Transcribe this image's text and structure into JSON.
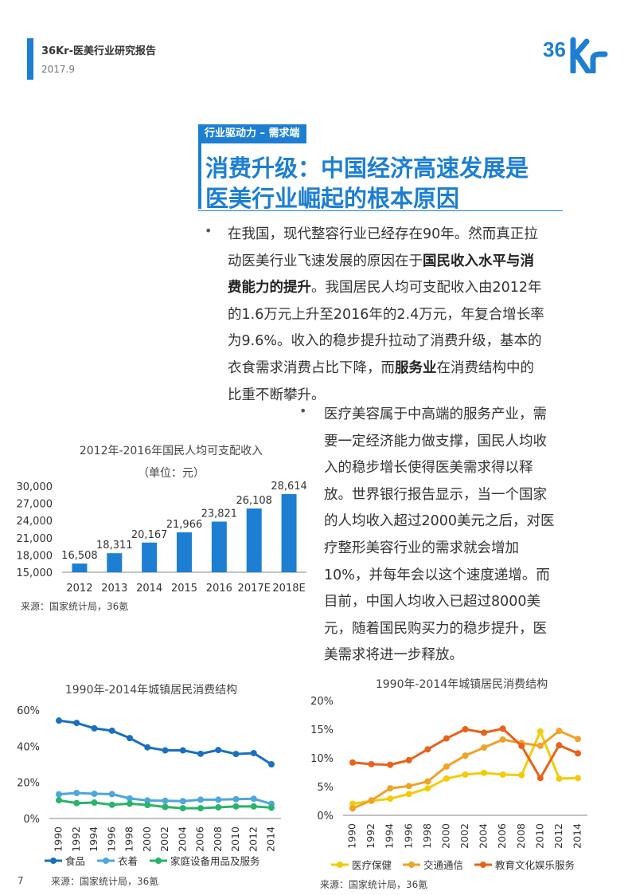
{
  "header": {
    "title": "36Kr-医美行业研究报告",
    "date": "2017.9",
    "logo": "36Kr"
  },
  "tag": "行业驱动力 – 需求端",
  "title_lines": [
    "消费升级：中国经济高速发展是",
    "医美行业崛起的根本原因"
  ],
  "para1": {
    "bullet": "•",
    "lines": [
      [
        {
          "t": "在我国，现代整容行业已经存在90年。然而真正拉"
        }
      ],
      [
        {
          "t": "动医美行业飞速发展的原因在于"
        },
        {
          "t": "国民收入水平与消",
          "b": true
        }
      ],
      [
        {
          "t": "费能力的提升",
          "b": true
        },
        {
          "t": "。我国居民人均可支配收入由2012年"
        }
      ],
      [
        {
          "t": "的1.6万元上升至2016年的2.4万元，年复合增长率"
        }
      ],
      [
        {
          "t": "为9.6%。收入的稳步提升拉动了消费升级，基本的"
        }
      ],
      [
        {
          "t": "衣食需求消费占比下降，而"
        },
        {
          "t": "服务业",
          "b": true
        },
        {
          "t": "在消费结构中的"
        }
      ],
      [
        {
          "t": "比重不断攀升。"
        }
      ]
    ]
  },
  "para2": {
    "bullet": "•",
    "lines": [
      "医疗美容属于中高端的服务产业，需",
      "要一定经济能力做支撑，国民人均收",
      "入的稳步增长使得医美需求得以释",
      "放。世界银行报告显示，当一个国家",
      "的人均收入超过2000美元之后，对医",
      "疗整形美容行业的需求就会增加",
      "10%，并每年会以这个速度递增。而",
      "目前，中国人均收入已超过8000美",
      "元，随着国民购买力的稳步提升，医",
      "美需求将进一步释放。"
    ]
  },
  "page_number": "7",
  "chart_data": [
    {
      "type": "bar",
      "title": "2012年-2016年国民人均可支配收入",
      "subtitle": "（单位：元）",
      "categories": [
        "2012",
        "2013",
        "2014",
        "2015",
        "2016",
        "2017E",
        "2018E"
      ],
      "values": [
        16508,
        18311,
        20167,
        21966,
        23821,
        26108,
        28614
      ],
      "labels": [
        "16,508",
        "18,311",
        "20,167",
        "21,966",
        "23,821",
        "26,108",
        "28,614"
      ],
      "ylim": [
        15000,
        30000
      ],
      "yticks": [
        "15,000",
        "18,000",
        "21,000",
        "24,000",
        "27,000",
        "30,000"
      ],
      "color": "#1e7fd2",
      "source": "来源：国家统计局，36氪",
      "grid": false
    },
    {
      "type": "line",
      "title": "1990年-2014年城镇居民消费结构",
      "x": [
        "1990",
        "1992",
        "1994",
        "1996",
        "1998",
        "2000",
        "2002",
        "2004",
        "2006",
        "2008",
        "2010",
        "2012",
        "2014"
      ],
      "ylim": [
        0,
        60
      ],
      "yticks": [
        "0%",
        "20%",
        "40%",
        "60%"
      ],
      "series": [
        {
          "name": "食品",
          "color": "#1a6fbf",
          "values": [
            54.2,
            52.9,
            49.9,
            48.6,
            44.5,
            39.4,
            37.7,
            37.7,
            35.8,
            37.9,
            35.7,
            36.2,
            30.0
          ]
        },
        {
          "name": "衣着",
          "color": "#4ea6dc",
          "values": [
            13.4,
            14.1,
            13.7,
            13.5,
            11.1,
            10.0,
            9.8,
            9.6,
            10.4,
            10.4,
            10.7,
            10.9,
            8.1
          ]
        },
        {
          "name": "家庭设备用品及服务",
          "color": "#2ab36b",
          "values": [
            10.1,
            8.5,
            8.8,
            7.6,
            8.2,
            7.5,
            6.4,
            5.7,
            5.7,
            6.2,
            6.7,
            6.7,
            6.0
          ]
        }
      ],
      "legend": "bottom",
      "source": "来源：国家统计局，36氪"
    },
    {
      "type": "line",
      "title": "1990年-2014年城镇居民消费结构",
      "x": [
        "1990",
        "1992",
        "1994",
        "1996",
        "1998",
        "2000",
        "2002",
        "2004",
        "2006",
        "2008",
        "2010",
        "2012",
        "2014"
      ],
      "ylim": [
        0,
        20
      ],
      "yticks": [
        "0%",
        "5%",
        "10%",
        "15%",
        "20%"
      ],
      "series": [
        {
          "name": "医疗保健",
          "color": "#f2cc0c",
          "values": [
            2.0,
            2.5,
            2.9,
            3.7,
            4.7,
            6.4,
            7.1,
            7.4,
            7.1,
            7.0,
            14.6,
            6.4,
            6.5
          ]
        },
        {
          "name": "交通通信",
          "color": "#f0a22a",
          "values": [
            1.2,
            2.6,
            4.7,
            5.1,
            5.9,
            8.5,
            10.4,
            11.8,
            13.2,
            12.6,
            12.1,
            14.7,
            13.3
          ]
        },
        {
          "name": "教育文化娱乐服务",
          "color": "#e8621c",
          "values": [
            9.2,
            8.9,
            8.8,
            9.6,
            11.5,
            13.4,
            15.0,
            14.4,
            15.1,
            12.1,
            6.5,
            12.2,
            10.8
          ]
        }
      ],
      "legend": "bottom",
      "source": "来源：国家统计局，36氪"
    }
  ]
}
